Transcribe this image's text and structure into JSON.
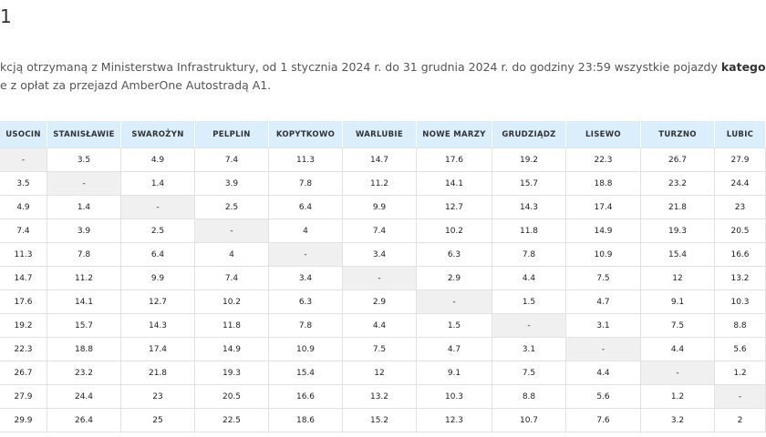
{
  "header": {
    "title": "1",
    "lines": [
      [
        {
          "text": "kcją otrzymaną z Ministerstwa Infrastruktury, od 1 stycznia 2024 r.  do 31 grudnia 2024 r. do godziny 23:59 wszystkie pojazdy "
        },
        {
          "text": "katego",
          "bold": true
        }
      ],
      [
        {
          "text": "e z opłat za przejazd AmberOne Autostradą A1."
        }
      ]
    ]
  },
  "table": {
    "columns": [
      "USOCIN",
      "STANISŁAWIE",
      "SWAROŻYN",
      "PELPLIN",
      "KOPYTKOWO",
      "WARLUBIE",
      "NOWE MARZY",
      "GRUDZIĄDZ",
      "LISEWO",
      "TURZNO",
      "LUBIC"
    ],
    "rows": [
      [
        "-",
        "3.5",
        "4.9",
        "7.4",
        "11.3",
        "14.7",
        "17.6",
        "19.2",
        "22.3",
        "26.7",
        "27.9"
      ],
      [
        "3.5",
        "-",
        "1.4",
        "3.9",
        "7.8",
        "11.2",
        "14.1",
        "15.7",
        "18.8",
        "23.2",
        "24.4"
      ],
      [
        "4.9",
        "1.4",
        "-",
        "2.5",
        "6.4",
        "9.9",
        "12.7",
        "14.3",
        "17.4",
        "21.8",
        "23"
      ],
      [
        "7.4",
        "3.9",
        "2.5",
        "-",
        "4",
        "7.4",
        "10.2",
        "11.8",
        "14.9",
        "19.3",
        "20.5"
      ],
      [
        "11.3",
        "7.8",
        "6.4",
        "4",
        "-",
        "3.4",
        "6.3",
        "7.8",
        "10.9",
        "15.4",
        "16.6"
      ],
      [
        "14.7",
        "11.2",
        "9.9",
        "7.4",
        "3.4",
        "-",
        "2.9",
        "4.4",
        "7.5",
        "12",
        "13.2"
      ],
      [
        "17.6",
        "14.1",
        "12.7",
        "10.2",
        "6.3",
        "2.9",
        "-",
        "1.5",
        "4.7",
        "9.1",
        "10.3"
      ],
      [
        "19.2",
        "15.7",
        "14.3",
        "11.8",
        "7.8",
        "4.4",
        "1.5",
        "-",
        "3.1",
        "7.5",
        "8.8"
      ],
      [
        "22.3",
        "18.8",
        "17.4",
        "14.9",
        "10.9",
        "7.5",
        "4.7",
        "3.1",
        "-",
        "4.4",
        "5.6"
      ],
      [
        "26.7",
        "23.2",
        "21.8",
        "19.3",
        "15.4",
        "12",
        "9.1",
        "7.5",
        "4.4",
        "-",
        "1.2"
      ],
      [
        "27.9",
        "24.4",
        "23",
        "20.5",
        "16.6",
        "13.2",
        "10.3",
        "8.8",
        "5.6",
        "1.2",
        "-"
      ],
      [
        "29.9",
        "26.4",
        "25",
        "22.5",
        "18.6",
        "15.2",
        "12.3",
        "10.7",
        "7.6",
        "3.2",
        "2"
      ]
    ]
  }
}
